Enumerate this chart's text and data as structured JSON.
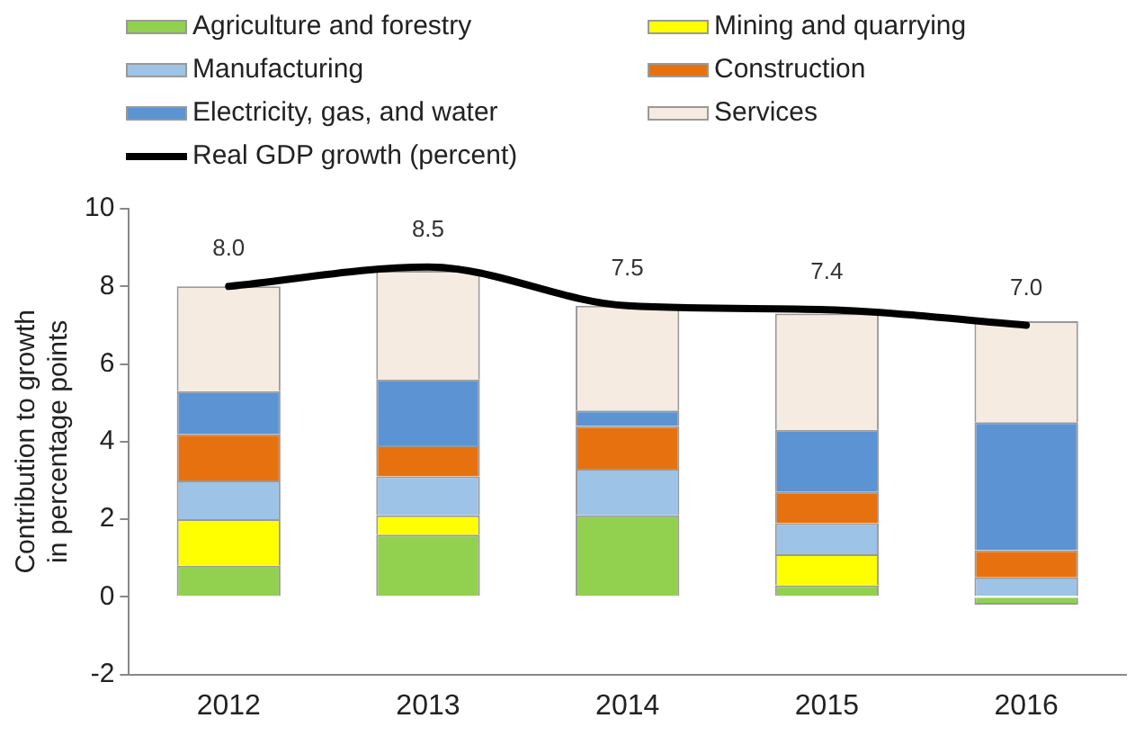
{
  "chart_data": {
    "type": "bar",
    "stacked": true,
    "ylabel": "Contribution to growth\nin percentage points",
    "categories": [
      "2012",
      "2013",
      "2014",
      "2015",
      "2016"
    ],
    "ylim": [
      -2,
      10
    ],
    "yticks": [
      -2,
      0,
      2,
      4,
      6,
      8,
      10
    ],
    "grid": false,
    "legend": "top",
    "series": [
      {
        "name": "Agriculture and forestry",
        "color": "#92d050",
        "values": [
          0.8,
          1.6,
          2.1,
          0.3,
          -0.2
        ]
      },
      {
        "name": "Mining and quarrying",
        "color": "#ffff00",
        "values": [
          1.2,
          0.5,
          0,
          0.8,
          0
        ]
      },
      {
        "name": "Manufacturing",
        "color": "#9dc3e6",
        "values": [
          1.0,
          1.0,
          1.2,
          0.8,
          0.5
        ]
      },
      {
        "name": "Construction",
        "color": "#e8710f",
        "values": [
          1.2,
          0.8,
          1.1,
          0.8,
          0.7
        ]
      },
      {
        "name": "Electricity, gas, and water",
        "color": "#5b93d3",
        "values": [
          1.1,
          1.7,
          0.4,
          1.6,
          3.3
        ]
      },
      {
        "name": "Services",
        "color": "#f5ebe0",
        "values": [
          2.7,
          2.8,
          2.7,
          3.0,
          2.6
        ]
      },
      {
        "name": "Real GDP growth (percent)",
        "type": "line",
        "color": "#000000",
        "values": [
          8.0,
          8.5,
          7.5,
          7.4,
          7.0
        ],
        "value_labels": [
          "8.0",
          "8.5",
          "7.5",
          "7.4",
          "7.0"
        ]
      }
    ]
  }
}
